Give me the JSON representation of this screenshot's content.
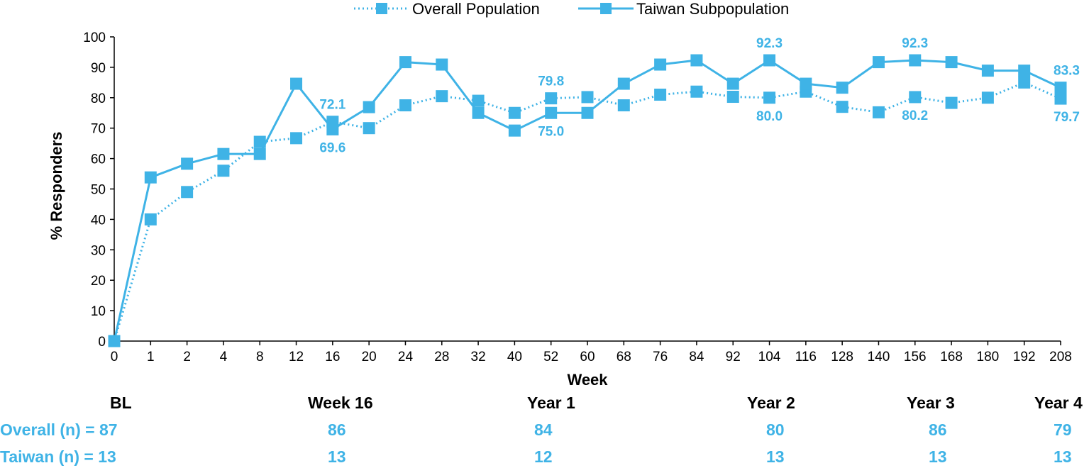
{
  "colors": {
    "series": "#3fb3e6",
    "axis": "#000000",
    "text": "#000000"
  },
  "chart_data": {
    "type": "line",
    "title": "",
    "xlabel": "Week",
    "ylabel": "% Responders",
    "ylim": [
      0,
      100
    ],
    "yticks": [
      "0",
      "10",
      "20",
      "30",
      "40",
      "50",
      "60",
      "70",
      "80",
      "90",
      "100"
    ],
    "categories": [
      "0",
      "1",
      "2",
      "4",
      "8",
      "12",
      "16",
      "20",
      "24",
      "28",
      "32",
      "40",
      "52",
      "60",
      "68",
      "76",
      "84",
      "92",
      "104",
      "116",
      "128",
      "140",
      "156",
      "168",
      "180",
      "192",
      "208"
    ],
    "legend_position": "top-center",
    "series": [
      {
        "name": "Overall Population",
        "style": "dotted",
        "values": [
          0,
          40.0,
          49.0,
          56.0,
          65.5,
          66.7,
          72.1,
          70.0,
          77.5,
          80.5,
          79.0,
          75.0,
          79.8,
          80.2,
          77.5,
          81.0,
          82.0,
          80.3,
          80.0,
          82.0,
          77.0,
          75.2,
          80.2,
          78.3,
          80.0,
          85.0,
          79.7
        ]
      },
      {
        "name": "Taiwan Subpopulation",
        "style": "solid",
        "values": [
          0,
          53.8,
          58.3,
          61.5,
          61.5,
          84.6,
          69.6,
          76.9,
          91.7,
          90.9,
          75.0,
          69.2,
          75.0,
          75.0,
          84.6,
          90.9,
          92.3,
          84.6,
          92.3,
          84.6,
          83.3,
          91.7,
          92.3,
          91.7,
          88.9,
          88.9,
          83.3
        ]
      }
    ],
    "annotations": [
      {
        "text": "72.1",
        "category": "16",
        "series": "Overall Population",
        "placement": "above"
      },
      {
        "text": "69.6",
        "category": "16",
        "series": "Taiwan Subpopulation",
        "placement": "below"
      },
      {
        "text": "79.8",
        "category": "52",
        "series": "Overall Population",
        "placement": "above"
      },
      {
        "text": "75.0",
        "category": "52",
        "series": "Taiwan Subpopulation",
        "placement": "below"
      },
      {
        "text": "92.3",
        "category": "104",
        "series": "Taiwan Subpopulation",
        "placement": "above"
      },
      {
        "text": "80.0",
        "category": "104",
        "series": "Overall Population",
        "placement": "below"
      },
      {
        "text": "92.3",
        "category": "156",
        "series": "Taiwan Subpopulation",
        "placement": "above"
      },
      {
        "text": "80.2",
        "category": "156",
        "series": "Overall Population",
        "placement": "below"
      },
      {
        "text": "83.3",
        "category": "208",
        "series": "Taiwan Subpopulation",
        "placement": "above"
      },
      {
        "text": "79.7",
        "category": "208",
        "series": "Overall Population",
        "placement": "below"
      }
    ]
  },
  "n_table": {
    "headers": [
      "BL",
      "Week 16",
      "Year 1",
      "Year 2",
      "Year 3",
      "Year 4"
    ],
    "overall": [
      "Overall (n) = 87",
      "86",
      "84",
      "80",
      "86",
      "79"
    ],
    "taiwan": [
      "Taiwan (n) = 13",
      "13",
      "12",
      "13",
      "13",
      "13"
    ]
  }
}
